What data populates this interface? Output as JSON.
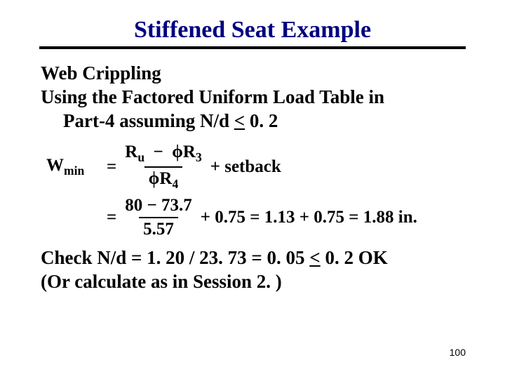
{
  "title": {
    "text": "Stiffened Seat Example",
    "fontsize": 34,
    "color": "#000080",
    "underline_color": "#000000",
    "underline_width": 4
  },
  "intro": {
    "line1": "Web Crippling",
    "line2": "Using the Factored Uniform Load Table in",
    "line3": "Part-4 assuming N/d ",
    "line3_tail": " 0. 2",
    "fontsize": 27
  },
  "equation": {
    "lhs": "W",
    "lhs_sub": "min",
    "eq": "=",
    "frac1_num_a": "R",
    "frac1_num_a_sub": "u",
    "frac1_num_minus": "−",
    "frac1_num_b": "R",
    "frac1_num_b_sub": "3",
    "frac1_den": "R",
    "frac1_den_sub": "4",
    "plus": "+",
    "setback": "setback",
    "row2_num": "80 − 73.7",
    "row2_den": "5.57",
    "row2_plus_val": "0.75",
    "row2_sum": "1.13 + 0.75",
    "row2_result": "1.88 in.",
    "fontsize": 25,
    "phi": "ϕ"
  },
  "check": {
    "line1_a": "Check N/d = 1. 20 / 23. 73 = 0. 05 ",
    "line1_b": " 0. 2  OK",
    "line2": "(Or calculate as in Session 2. )",
    "fontsize": 27
  },
  "page_number": {
    "value": "100",
    "fontsize": 14
  },
  "colors": {
    "background": "#ffffff",
    "text": "#000000",
    "title": "#000080"
  }
}
